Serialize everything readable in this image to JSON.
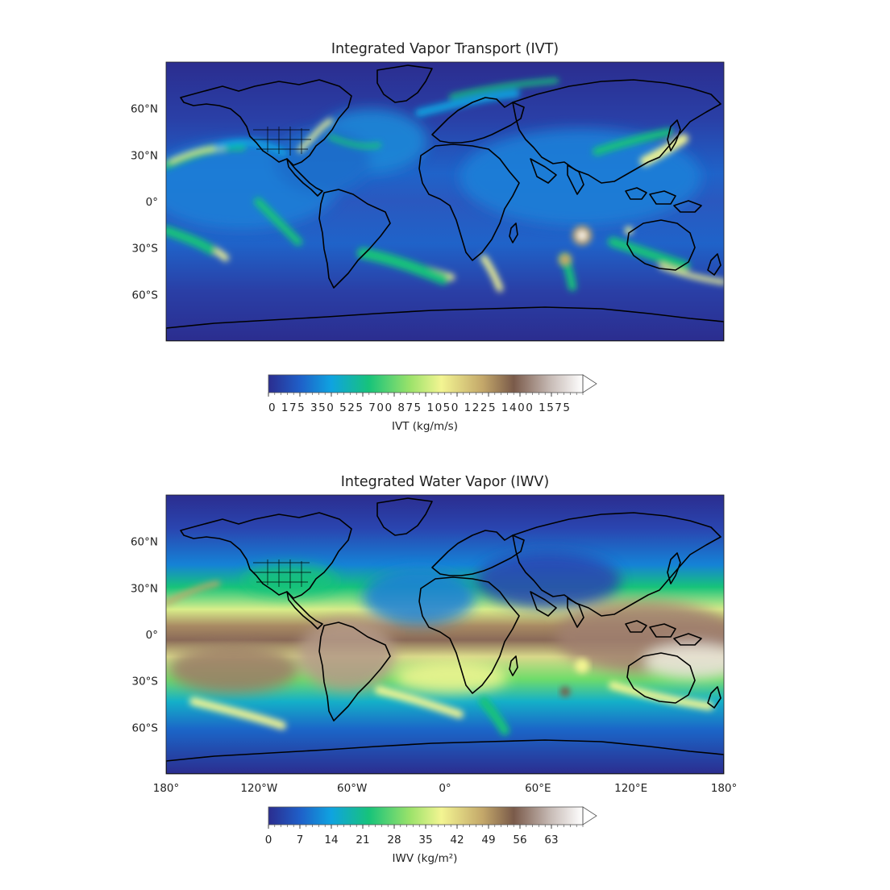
{
  "panels": [
    {
      "id": "ivt",
      "title": "Integrated Vapor Transport (IVT)",
      "lat_ticks": [
        "60°N",
        "30°N",
        "0°",
        "30°S",
        "60°S"
      ],
      "lat_values": [
        60,
        30,
        0,
        -30,
        -60
      ],
      "colorbar": {
        "label": "IVT (kg/m/s)",
        "ticks": [
          0,
          175,
          350,
          525,
          700,
          875,
          1050,
          1225,
          1400,
          1575
        ],
        "tick_text": "0 175 350 525 700 875 1050 1225 1400 1575",
        "min": 0,
        "max": 1750,
        "extend": "max"
      }
    },
    {
      "id": "iwv",
      "title": "Integrated Water Vapor (IWV)",
      "lat_ticks": [
        "60°N",
        "30°N",
        "0°",
        "30°S",
        "60°S"
      ],
      "lat_values": [
        60,
        30,
        0,
        -30,
        -60
      ],
      "lon_ticks": [
        "180°",
        "120°W",
        "60°W",
        "0°",
        "60°E",
        "120°E",
        "180°"
      ],
      "lon_values": [
        -180,
        -120,
        -60,
        0,
        60,
        120,
        180
      ],
      "colorbar": {
        "label": "IWV (kg/m²)",
        "ticks": [
          0,
          7,
          14,
          21,
          28,
          35,
          42,
          49,
          56,
          63
        ],
        "min": 0,
        "max": 70,
        "extend": "max"
      }
    }
  ],
  "colormap": {
    "name": "terrain-like",
    "stops": [
      "#2b2d8f",
      "#1f5fc8",
      "#0fa3e0",
      "#17c37a",
      "#9be26a",
      "#f3f592",
      "#c4a86a",
      "#7a5a4a",
      "#c9bdb8",
      "#ffffff"
    ]
  }
}
